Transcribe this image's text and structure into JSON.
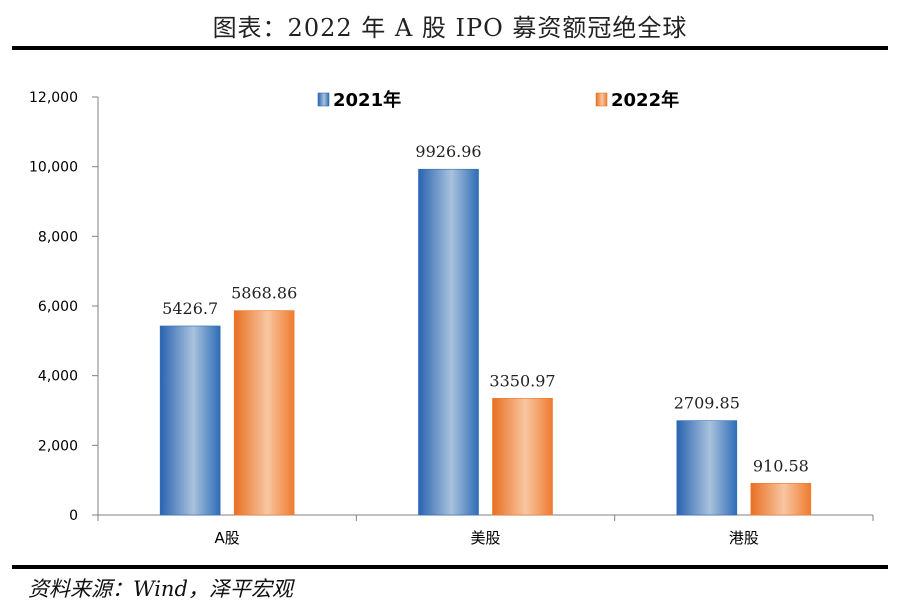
{
  "title": "图表：2022 年 A 股 IPO 募资额冠绝全球",
  "source": "资料来源：Wind，泽平宏观",
  "colors": {
    "series_2021": "#2f6db6",
    "series_2022": "#ef7b2e"
  },
  "chart_data": {
    "type": "bar",
    "categories": [
      "A股",
      "美股",
      "港股"
    ],
    "series": [
      {
        "name": "2021年",
        "values": [
          5426.7,
          9926.96,
          2709.85
        ],
        "labels": [
          "5426.7",
          "9926.96",
          "2709.85"
        ]
      },
      {
        "name": "2022年",
        "values": [
          5868.86,
          3350.97,
          910.58
        ],
        "labels": [
          "5868.86",
          "3350.97",
          "910.58"
        ]
      }
    ],
    "ylim": [
      0,
      12000
    ],
    "yticks": [
      0,
      2000,
      4000,
      6000,
      8000,
      10000,
      12000
    ],
    "ytick_labels": [
      "0",
      "2,000",
      "4,000",
      "6,000",
      "8,000",
      "10,000",
      "12,000"
    ],
    "legend_position": "top-center",
    "grid": false
  }
}
